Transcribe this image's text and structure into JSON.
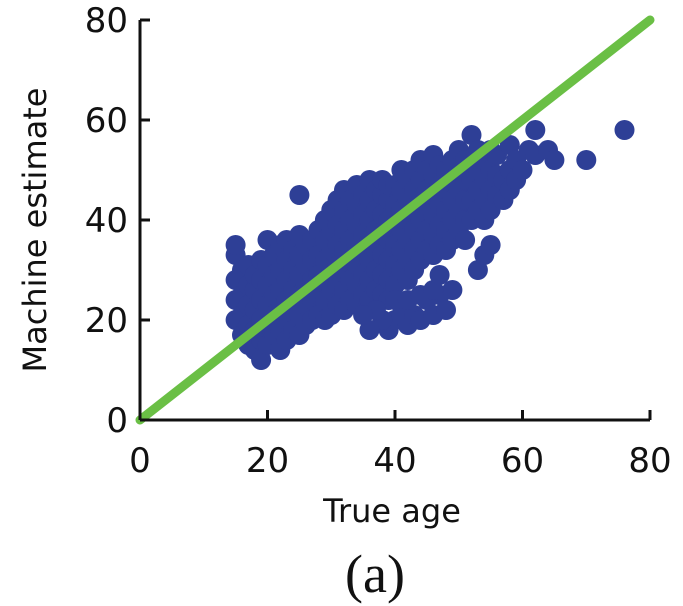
{
  "chart_data": {
    "type": "scatter",
    "xlabel": "True age",
    "ylabel": "Machine estimate",
    "panel_label": "(a)",
    "xlim": [
      0,
      80
    ],
    "ylim": [
      0,
      80
    ],
    "x_ticks": [
      "0",
      "20",
      "40",
      "60",
      "80"
    ],
    "y_ticks": [
      "0",
      "20",
      "40",
      "60",
      "80"
    ],
    "grid": false,
    "legend": "none",
    "colors": {
      "points": "#2e3f96",
      "reference_line": "#6abf45",
      "axes": "#111111"
    },
    "reference_line": {
      "x": [
        0,
        80
      ],
      "y": [
        0,
        80
      ]
    },
    "series": [
      {
        "values": [
          [
            15,
            20
          ],
          [
            15,
            24
          ],
          [
            15,
            28
          ],
          [
            15,
            33
          ],
          [
            15,
            35
          ],
          [
            16,
            17
          ],
          [
            16,
            21
          ],
          [
            16,
            25
          ],
          [
            16,
            30
          ],
          [
            17,
            15
          ],
          [
            17,
            19
          ],
          [
            17,
            23
          ],
          [
            17,
            27
          ],
          [
            17,
            31
          ],
          [
            18,
            14
          ],
          [
            18,
            18
          ],
          [
            18,
            22
          ],
          [
            18,
            26
          ],
          [
            18,
            29
          ],
          [
            19,
            12
          ],
          [
            19,
            16
          ],
          [
            19,
            20
          ],
          [
            19,
            24
          ],
          [
            19,
            28
          ],
          [
            19,
            32
          ],
          [
            20,
            15
          ],
          [
            20,
            19
          ],
          [
            20,
            23
          ],
          [
            20,
            27
          ],
          [
            20,
            31
          ],
          [
            20,
            36
          ],
          [
            21,
            17
          ],
          [
            21,
            21
          ],
          [
            21,
            25
          ],
          [
            21,
            29
          ],
          [
            21,
            33
          ],
          [
            22,
            14
          ],
          [
            22,
            18
          ],
          [
            22,
            22
          ],
          [
            22,
            26
          ],
          [
            22,
            30
          ],
          [
            22,
            35
          ],
          [
            23,
            16
          ],
          [
            23,
            20
          ],
          [
            23,
            24
          ],
          [
            23,
            28
          ],
          [
            23,
            32
          ],
          [
            23,
            36
          ],
          [
            24,
            18
          ],
          [
            24,
            22
          ],
          [
            24,
            26
          ],
          [
            24,
            30
          ],
          [
            24,
            34
          ],
          [
            25,
            17
          ],
          [
            25,
            21
          ],
          [
            25,
            25
          ],
          [
            25,
            29
          ],
          [
            25,
            33
          ],
          [
            25,
            37
          ],
          [
            25,
            45
          ],
          [
            26,
            19
          ],
          [
            26,
            23
          ],
          [
            26,
            27
          ],
          [
            26,
            31
          ],
          [
            26,
            35
          ],
          [
            27,
            20
          ],
          [
            27,
            24
          ],
          [
            27,
            28
          ],
          [
            27,
            32
          ],
          [
            27,
            36
          ],
          [
            28,
            21
          ],
          [
            28,
            25
          ],
          [
            28,
            29
          ],
          [
            28,
            33
          ],
          [
            28,
            38
          ],
          [
            29,
            20
          ],
          [
            29,
            24
          ],
          [
            29,
            28
          ],
          [
            29,
            32
          ],
          [
            29,
            36
          ],
          [
            29,
            40
          ],
          [
            30,
            21
          ],
          [
            30,
            26
          ],
          [
            30,
            30
          ],
          [
            30,
            34
          ],
          [
            30,
            38
          ],
          [
            30,
            42
          ],
          [
            31,
            23
          ],
          [
            31,
            27
          ],
          [
            31,
            31
          ],
          [
            31,
            35
          ],
          [
            31,
            39
          ],
          [
            31,
            44
          ],
          [
            32,
            22
          ],
          [
            32,
            26
          ],
          [
            32,
            30
          ],
          [
            32,
            34
          ],
          [
            32,
            38
          ],
          [
            32,
            42
          ],
          [
            32,
            46
          ],
          [
            33,
            24
          ],
          [
            33,
            28
          ],
          [
            33,
            32
          ],
          [
            33,
            36
          ],
          [
            33,
            40
          ],
          [
            33,
            44
          ],
          [
            34,
            23
          ],
          [
            34,
            27
          ],
          [
            34,
            31
          ],
          [
            34,
            35
          ],
          [
            34,
            39
          ],
          [
            34,
            43
          ],
          [
            34,
            47
          ],
          [
            35,
            25
          ],
          [
            35,
            29
          ],
          [
            35,
            33
          ],
          [
            35,
            37
          ],
          [
            35,
            41
          ],
          [
            35,
            45
          ],
          [
            36,
            24
          ],
          [
            36,
            28
          ],
          [
            36,
            32
          ],
          [
            36,
            36
          ],
          [
            36,
            40
          ],
          [
            36,
            44
          ],
          [
            36,
            48
          ],
          [
            37,
            26
          ],
          [
            37,
            30
          ],
          [
            37,
            34
          ],
          [
            37,
            38
          ],
          [
            37,
            42
          ],
          [
            37,
            46
          ],
          [
            38,
            25
          ],
          [
            38,
            29
          ],
          [
            38,
            33
          ],
          [
            38,
            37
          ],
          [
            38,
            41
          ],
          [
            38,
            45
          ],
          [
            38,
            48
          ],
          [
            39,
            24
          ],
          [
            39,
            28
          ],
          [
            39,
            32
          ],
          [
            39,
            36
          ],
          [
            39,
            40
          ],
          [
            39,
            44
          ],
          [
            39,
            47
          ],
          [
            40,
            27
          ],
          [
            40,
            31
          ],
          [
            40,
            35
          ],
          [
            40,
            39
          ],
          [
            40,
            43
          ],
          [
            40,
            47
          ],
          [
            41,
            30
          ],
          [
            41,
            34
          ],
          [
            41,
            38
          ],
          [
            41,
            42
          ],
          [
            41,
            46
          ],
          [
            41,
            50
          ],
          [
            42,
            28
          ],
          [
            42,
            32
          ],
          [
            42,
            36
          ],
          [
            42,
            40
          ],
          [
            42,
            44
          ],
          [
            42,
            48
          ],
          [
            43,
            30
          ],
          [
            43,
            34
          ],
          [
            43,
            38
          ],
          [
            43,
            42
          ],
          [
            43,
            46
          ],
          [
            43,
            50
          ],
          [
            44,
            32
          ],
          [
            44,
            36
          ],
          [
            44,
            40
          ],
          [
            44,
            44
          ],
          [
            44,
            48
          ],
          [
            44,
            52
          ],
          [
            45,
            34
          ],
          [
            45,
            38
          ],
          [
            45,
            42
          ],
          [
            45,
            46
          ],
          [
            45,
            50
          ],
          [
            46,
            33
          ],
          [
            46,
            37
          ],
          [
            46,
            41
          ],
          [
            46,
            45
          ],
          [
            46,
            49
          ],
          [
            46,
            53
          ],
          [
            47,
            35
          ],
          [
            47,
            39
          ],
          [
            47,
            43
          ],
          [
            47,
            47
          ],
          [
            47,
            51
          ],
          [
            48,
            34
          ],
          [
            48,
            38
          ],
          [
            48,
            42
          ],
          [
            48,
            46
          ],
          [
            48,
            50
          ],
          [
            49,
            36
          ],
          [
            49,
            40
          ],
          [
            49,
            44
          ],
          [
            49,
            48
          ],
          [
            49,
            52
          ],
          [
            50,
            38
          ],
          [
            50,
            42
          ],
          [
            50,
            46
          ],
          [
            50,
            50
          ],
          [
            50,
            54
          ],
          [
            51,
            36
          ],
          [
            51,
            40
          ],
          [
            51,
            44
          ],
          [
            51,
            48
          ],
          [
            51,
            52
          ],
          [
            52,
            40
          ],
          [
            52,
            44
          ],
          [
            52,
            48
          ],
          [
            52,
            57
          ],
          [
            53,
            42
          ],
          [
            53,
            46
          ],
          [
            53,
            50
          ],
          [
            53,
            54
          ],
          [
            54,
            40
          ],
          [
            54,
            44
          ],
          [
            54,
            48
          ],
          [
            54,
            52
          ],
          [
            55,
            42
          ],
          [
            55,
            46
          ],
          [
            55,
            50
          ],
          [
            55,
            54
          ],
          [
            56,
            45
          ],
          [
            56,
            49
          ],
          [
            56,
            53
          ],
          [
            57,
            44
          ],
          [
            57,
            48
          ],
          [
            58,
            46
          ],
          [
            58,
            50
          ],
          [
            58,
            55
          ],
          [
            59,
            48
          ],
          [
            59,
            52
          ],
          [
            60,
            50
          ],
          [
            61,
            54
          ],
          [
            62,
            53
          ],
          [
            62,
            58
          ],
          [
            64,
            54
          ],
          [
            65,
            52
          ],
          [
            70,
            52
          ],
          [
            76,
            58
          ],
          [
            39,
            18
          ],
          [
            40,
            20
          ],
          [
            41,
            21
          ],
          [
            42,
            19
          ],
          [
            43,
            21
          ],
          [
            44,
            20
          ],
          [
            45,
            24
          ],
          [
            46,
            21
          ],
          [
            47,
            25
          ],
          [
            48,
            22
          ],
          [
            49,
            26
          ],
          [
            53,
            30
          ],
          [
            54,
            33
          ],
          [
            55,
            35
          ],
          [
            38,
            20
          ],
          [
            37,
            22
          ],
          [
            36,
            18
          ],
          [
            35,
            21
          ],
          [
            40,
            24
          ],
          [
            42,
            24
          ],
          [
            44,
            25
          ],
          [
            46,
            26
          ],
          [
            47,
            29
          ]
        ]
      }
    ]
  }
}
